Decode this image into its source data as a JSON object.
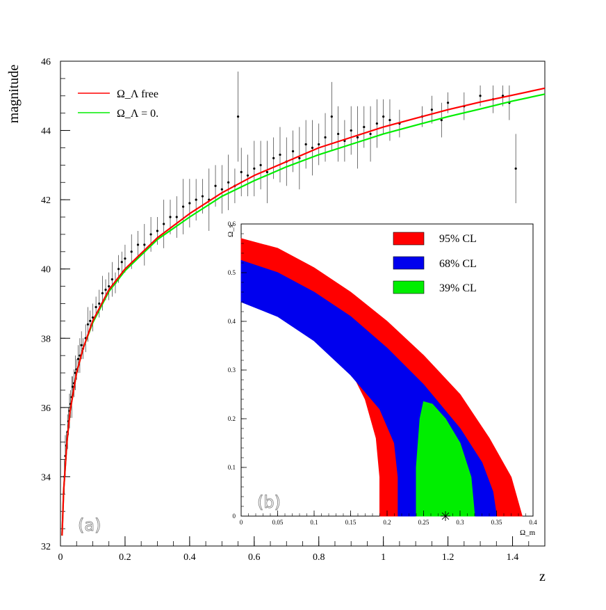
{
  "chart_data": [
    {
      "type": "scatter",
      "panel_label": "(a)",
      "xlabel": "z",
      "ylabel": "magnitude",
      "xlim": [
        0,
        1.5
      ],
      "ylim": [
        32,
        46
      ],
      "x_ticks": [
        0,
        0.2,
        0.4,
        0.6,
        0.8,
        1,
        1.2,
        1.4
      ],
      "x_tick_labels": [
        "0",
        "0.2",
        "0.4",
        "0.6",
        "0.8",
        "1",
        "1.2",
        "1.4"
      ],
      "y_ticks": [
        32,
        34,
        36,
        38,
        40,
        42,
        44,
        46
      ],
      "y_tick_labels": [
        "32",
        "34",
        "36",
        "38",
        "40",
        "42",
        "44",
        "46"
      ],
      "grid": false,
      "legend_position": "top-left",
      "series": [
        {
          "name": "Ω_Λ free",
          "kind": "line",
          "color": "#ff0000",
          "x": [
            0.005,
            0.01,
            0.02,
            0.03,
            0.05,
            0.07,
            0.1,
            0.15,
            0.2,
            0.3,
            0.4,
            0.5,
            0.6,
            0.7,
            0.8,
            0.9,
            1.0,
            1.1,
            1.2,
            1.3,
            1.4,
            1.5
          ],
          "y": [
            32.3,
            33.6,
            35.0,
            35.9,
            37.0,
            37.7,
            38.5,
            39.4,
            40.0,
            40.9,
            41.6,
            42.2,
            42.7,
            43.1,
            43.5,
            43.8,
            44.1,
            44.35,
            44.6,
            44.82,
            45.02,
            45.22
          ]
        },
        {
          "name": "Ω_Λ = 0.",
          "kind": "line",
          "color": "#00ee00",
          "x": [
            0.005,
            0.01,
            0.02,
            0.03,
            0.05,
            0.07,
            0.1,
            0.15,
            0.2,
            0.3,
            0.4,
            0.5,
            0.6,
            0.7,
            0.8,
            0.9,
            1.0,
            1.1,
            1.2,
            1.3,
            1.4,
            1.5
          ],
          "y": [
            32.3,
            33.6,
            35.0,
            35.9,
            37.0,
            37.7,
            38.45,
            39.35,
            39.95,
            40.85,
            41.5,
            42.1,
            42.55,
            42.95,
            43.3,
            43.6,
            43.9,
            44.15,
            44.4,
            44.62,
            44.85,
            45.05
          ]
        },
        {
          "name": "",
          "kind": "points",
          "color": "#000000",
          "x": [
            0.012,
            0.015,
            0.018,
            0.022,
            0.025,
            0.028,
            0.031,
            0.035,
            0.038,
            0.042,
            0.046,
            0.05,
            0.055,
            0.06,
            0.065,
            0.07,
            0.078,
            0.085,
            0.092,
            0.1,
            0.11,
            0.12,
            0.13,
            0.14,
            0.15,
            0.16,
            0.17,
            0.18,
            0.19,
            0.2,
            0.22,
            0.24,
            0.26,
            0.28,
            0.3,
            0.32,
            0.34,
            0.36,
            0.38,
            0.4,
            0.42,
            0.44,
            0.46,
            0.48,
            0.5,
            0.52,
            0.54,
            0.55,
            0.56,
            0.58,
            0.6,
            0.62,
            0.64,
            0.66,
            0.68,
            0.7,
            0.72,
            0.74,
            0.76,
            0.78,
            0.8,
            0.82,
            0.84,
            0.86,
            0.88,
            0.9,
            0.92,
            0.94,
            0.96,
            0.98,
            1.0,
            1.02,
            1.05,
            1.12,
            1.15,
            1.18,
            1.2,
            1.25,
            1.3,
            1.34,
            1.37,
            1.39,
            1.41
          ],
          "y": [
            34.0,
            34.6,
            34.9,
            35.3,
            35.6,
            35.9,
            36.1,
            36.3,
            36.6,
            36.7,
            37.0,
            37.1,
            37.4,
            37.5,
            37.8,
            37.7,
            38.0,
            38.4,
            38.5,
            38.6,
            38.9,
            39.0,
            39.3,
            39.4,
            39.5,
            39.7,
            39.6,
            40.0,
            40.2,
            40.3,
            40.5,
            40.7,
            40.7,
            41.0,
            41.1,
            41.3,
            41.5,
            41.5,
            41.8,
            41.9,
            42.0,
            42.1,
            42.0,
            42.4,
            42.3,
            42.5,
            42.4,
            44.4,
            42.8,
            42.7,
            42.9,
            43.0,
            42.8,
            43.2,
            43.3,
            43.1,
            43.4,
            43.2,
            43.6,
            43.5,
            43.6,
            43.8,
            44.4,
            43.9,
            43.7,
            44.0,
            43.8,
            44.1,
            43.9,
            44.2,
            44.4,
            44.3,
            44.2,
            44.4,
            44.6,
            44.3,
            44.8,
            44.7,
            45.0,
            44.9,
            45.0,
            44.8,
            42.9
          ],
          "errors": [
            0.5,
            0.6,
            0.4,
            0.5,
            0.4,
            0.5,
            0.4,
            0.6,
            0.3,
            0.4,
            0.5,
            0.3,
            0.4,
            0.5,
            0.4,
            0.3,
            0.4,
            0.5,
            0.3,
            0.4,
            0.3,
            0.4,
            0.5,
            0.3,
            0.4,
            0.5,
            0.3,
            0.4,
            0.3,
            0.4,
            0.5,
            0.4,
            0.6,
            0.5,
            0.4,
            0.7,
            0.5,
            0.6,
            0.8,
            0.7,
            0.6,
            0.5,
            0.9,
            0.6,
            0.7,
            0.8,
            0.5,
            1.3,
            0.7,
            0.6,
            0.8,
            0.7,
            0.9,
            0.6,
            0.8,
            0.7,
            0.6,
            0.9,
            0.7,
            0.8,
            0.6,
            0.7,
            1.0,
            0.8,
            0.6,
            0.7,
            0.9,
            0.6,
            0.8,
            0.7,
            0.5,
            0.6,
            0.4,
            0.3,
            0.4,
            0.5,
            0.3,
            0.4,
            0.3,
            0.4,
            0.3,
            0.5,
            1.0
          ]
        }
      ]
    },
    {
      "type": "area",
      "panel_label": "(b)",
      "xlabel": "Ω_m",
      "ylabel": "Ω_s",
      "xlim": [
        0,
        0.4
      ],
      "ylim": [
        0,
        0.6
      ],
      "x_ticks": [
        0,
        0.05,
        0.1,
        0.15,
        0.2,
        0.25,
        0.3,
        0.35,
        0.4
      ],
      "x_tick_labels": [
        "0",
        "0.05",
        "0.1",
        "0.15",
        "0.2",
        "0.25",
        "0.3",
        "0.35",
        "0.4"
      ],
      "y_ticks": [
        0,
        0.1,
        0.2,
        0.3,
        0.4,
        0.5,
        0.6
      ],
      "y_tick_labels": [
        "0",
        "0.1",
        "0.2",
        "0.3",
        "0.4",
        "0.5",
        "0.6"
      ],
      "grid": false,
      "legend_position": "top-right",
      "best_fit": {
        "x": 0.28,
        "y": 0.0
      },
      "series": [
        {
          "name": "95% CL",
          "color": "#ff0000",
          "outer_boundary": [
            [
              0,
              0.57
            ],
            [
              0.05,
              0.55
            ],
            [
              0.1,
              0.51
            ],
            [
              0.15,
              0.46
            ],
            [
              0.2,
              0.4
            ],
            [
              0.25,
              0.33
            ],
            [
              0.3,
              0.25
            ],
            [
              0.34,
              0.16
            ],
            [
              0.37,
              0.08
            ],
            [
              0.385,
              0.0
            ]
          ],
          "inner_boundary": [
            [
              0,
              0.46
            ],
            [
              0.05,
              0.43
            ],
            [
              0.1,
              0.38
            ],
            [
              0.15,
              0.3
            ],
            [
              0.17,
              0.24
            ],
            [
              0.185,
              0.16
            ],
            [
              0.19,
              0.08
            ],
            [
              0.19,
              0.0
            ]
          ]
        },
        {
          "name": "68% CL",
          "color": "#0000ee",
          "outer_boundary": [
            [
              0,
              0.525
            ],
            [
              0.05,
              0.5
            ],
            [
              0.1,
              0.46
            ],
            [
              0.15,
              0.41
            ],
            [
              0.2,
              0.345
            ],
            [
              0.25,
              0.27
            ],
            [
              0.3,
              0.18
            ],
            [
              0.33,
              0.11
            ],
            [
              0.345,
              0.05
            ],
            [
              0.35,
              0.0
            ]
          ],
          "inner_boundary": [
            [
              0,
              0.44
            ],
            [
              0.05,
              0.41
            ],
            [
              0.1,
              0.36
            ],
            [
              0.15,
              0.29
            ],
            [
              0.19,
              0.22
            ],
            [
              0.21,
              0.15
            ],
            [
              0.215,
              0.08
            ],
            [
              0.215,
              0.0
            ]
          ]
        },
        {
          "name": "39% CL",
          "color": "#00ee00",
          "region": [
            [
              0.24,
              0.0
            ],
            [
              0.24,
              0.1
            ],
            [
              0.245,
              0.2
            ],
            [
              0.25,
              0.235
            ],
            [
              0.262,
              0.23
            ],
            [
              0.28,
              0.2
            ],
            [
              0.3,
              0.15
            ],
            [
              0.315,
              0.08
            ],
            [
              0.32,
              0.0
            ]
          ]
        }
      ]
    }
  ]
}
